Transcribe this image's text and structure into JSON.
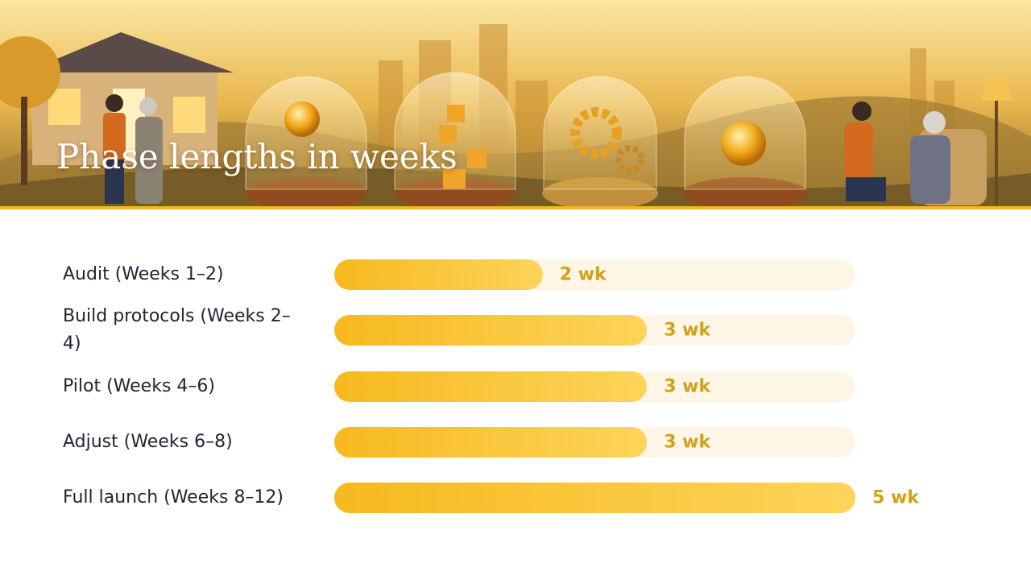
{
  "chart_data": {
    "type": "bar",
    "orientation": "horizontal",
    "title": "Phase lengths in weeks",
    "categories": [
      "Audit (Weeks 1–2)",
      "Build protocols (Weeks 2–4)",
      "Pilot (Weeks 4–6)",
      "Adjust (Weeks 6–8)",
      "Full launch (Weeks 8–12)"
    ],
    "values": [
      2,
      3,
      3,
      3,
      5
    ],
    "value_labels": [
      "2 wk",
      "3 wk",
      "3 wk",
      "3 wk",
      "5 wk"
    ],
    "color": "#f6b91f",
    "xlim": [
      0,
      5
    ]
  }
}
